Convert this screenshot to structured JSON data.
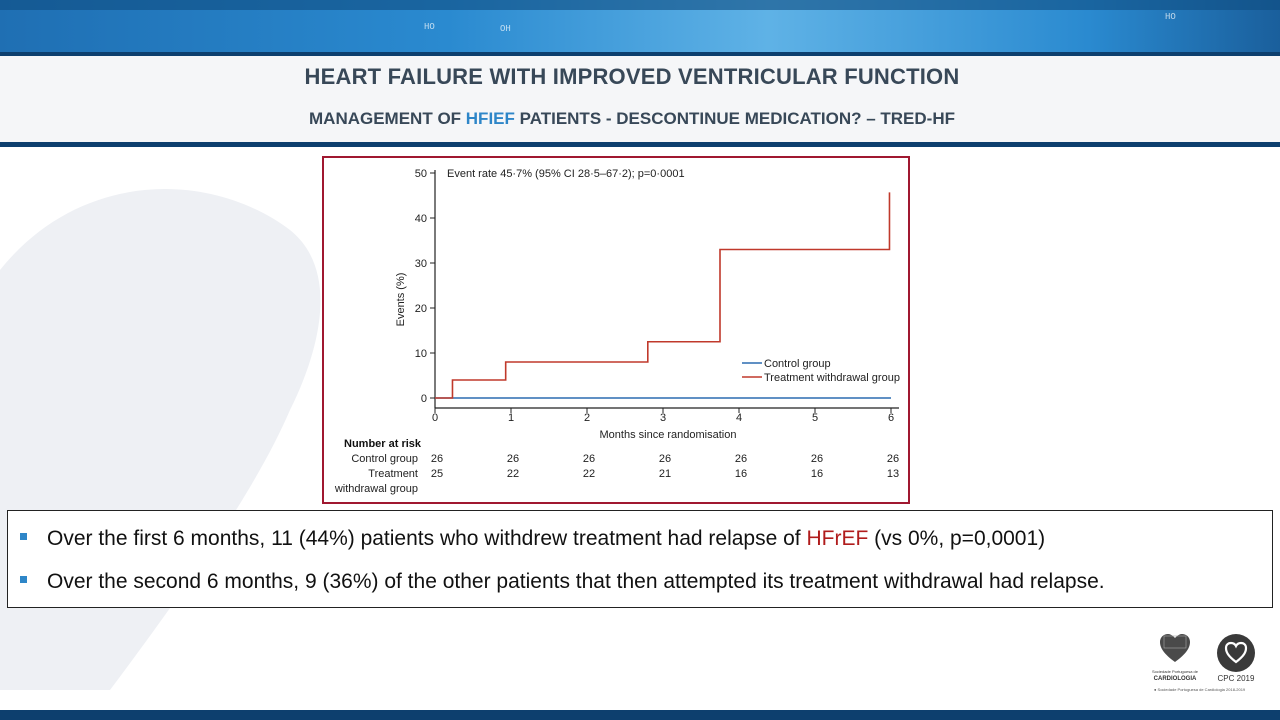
{
  "slide": {
    "title": "HEART FAILURE WITH IMPROVED VENTRICULAR FUNCTION",
    "subtitle_before": "MANAGEMENT OF ",
    "subtitle_accent": "HFIEF",
    "subtitle_after": " PATIENTS - DESCONTINUE MEDICATION? – TRED-HF",
    "accent_color": "#2e86c8"
  },
  "chart_data": {
    "type": "line",
    "annotation": "Event rate 45·7% (95% CI 28·5–67·2); p=0·0001",
    "xlabel": "Months since randomisation",
    "ylabel": "Events (%)",
    "xlim": [
      0,
      6
    ],
    "ylim": [
      0,
      50
    ],
    "x_ticks": [
      "0",
      "1",
      "2",
      "3",
      "4",
      "5",
      "6"
    ],
    "y_ticks": [
      "0",
      "10",
      "20",
      "30",
      "40",
      "50"
    ],
    "legend_position": "right",
    "series": [
      {
        "name": "Control group",
        "color": "#2b6cb0",
        "step": true,
        "points": [
          [
            0,
            0
          ],
          [
            6,
            0
          ]
        ]
      },
      {
        "name": "Treatment withdrawal group",
        "color": "#c0392b",
        "step": true,
        "points": [
          [
            0,
            0
          ],
          [
            0.23,
            0
          ],
          [
            0.23,
            4
          ],
          [
            0.93,
            4
          ],
          [
            0.93,
            8
          ],
          [
            2.8,
            8
          ],
          [
            2.8,
            12.5
          ],
          [
            3.75,
            12.5
          ],
          [
            3.75,
            33
          ],
          [
            5.98,
            33
          ],
          [
            5.98,
            45.7
          ]
        ]
      }
    ],
    "risk_table": {
      "header": "Number at risk",
      "rows": [
        {
          "label": "Control group",
          "values": [
            "26",
            "26",
            "26",
            "26",
            "26",
            "26",
            "26"
          ]
        },
        {
          "label_line1": "Treatment",
          "label_line2": "withdrawal group",
          "values": [
            "25",
            "22",
            "22",
            "21",
            "16",
            "16",
            "13"
          ]
        }
      ]
    }
  },
  "bullets": [
    {
      "before": "Over the first 6 months, 11 (44%) patients who withdrew  treatment had relapse of ",
      "highlight": "HFrEF",
      "after": " (vs 0%, p=0,0001)"
    },
    {
      "text": "Over the second 6 months, 9 (36%) of the other patients that then attempted its treatment withdrawal had relapse."
    }
  ],
  "logos": {
    "spc_small": "Sociedade Portuguesa de",
    "spc_name": "CARDIOLOGIA",
    "cpc_label": "CPC 2019",
    "copyright": "● Sociedade Portuguesa de Cardiologia 2018-2019"
  }
}
